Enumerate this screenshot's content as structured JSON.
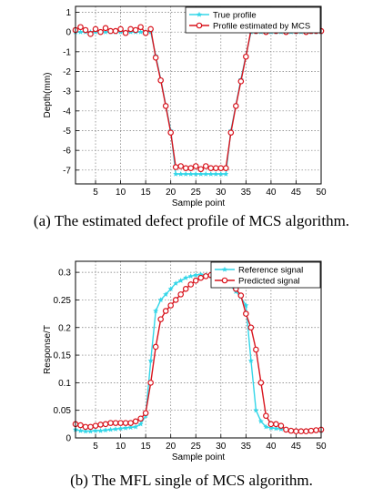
{
  "captions": {
    "a": "(a) The estimated defect profile of MCS algorithm.",
    "b": "(b) The MFL single of MCS algorithm."
  },
  "chart_data": [
    {
      "type": "line",
      "xlabel": "Sample point",
      "ylabel": "Depth(mm)",
      "xlim": [
        1,
        50
      ],
      "ylim": [
        -7.7,
        1.3
      ],
      "xticks": [
        5,
        10,
        15,
        20,
        25,
        30,
        35,
        40,
        45,
        50
      ],
      "yticks": [
        1,
        0,
        -1,
        -2,
        -3,
        -4,
        -5,
        -6,
        -7
      ],
      "grid": true,
      "legend_position": "top-right",
      "x": [
        1,
        2,
        3,
        4,
        5,
        6,
        7,
        8,
        9,
        10,
        11,
        12,
        13,
        14,
        15,
        16,
        17,
        18,
        19,
        20,
        21,
        22,
        23,
        24,
        25,
        26,
        27,
        28,
        29,
        30,
        31,
        32,
        33,
        34,
        35,
        36,
        37,
        38,
        39,
        40,
        41,
        42,
        43,
        44,
        45,
        46,
        47,
        48,
        49,
        50
      ],
      "series": [
        {
          "name": "True profile",
          "color": "#33d6e8",
          "marker": "star",
          "values": [
            0,
            0,
            0,
            0,
            0,
            0,
            0,
            0,
            0,
            0,
            0,
            0,
            0,
            0,
            0,
            0,
            -1.2,
            -2.4,
            -3.7,
            -5.0,
            -7.2,
            -7.2,
            -7.2,
            -7.2,
            -7.2,
            -7.2,
            -7.2,
            -7.2,
            -7.2,
            -7.2,
            -7.2,
            -5.0,
            -3.7,
            -2.4,
            -1.2,
            0,
            0,
            0,
            0,
            0,
            0,
            0,
            0,
            0,
            0,
            0,
            0,
            0,
            0,
            0
          ]
        },
        {
          "name": "Profile estimated by MCS",
          "color": "#d8131c",
          "marker": "circle",
          "values": [
            0.1,
            0.25,
            0.1,
            -0.1,
            0.15,
            0.0,
            0.2,
            0.05,
            0.05,
            0.15,
            -0.05,
            0.15,
            0.1,
            0.25,
            -0.05,
            0.15,
            -1.3,
            -2.45,
            -3.75,
            -5.1,
            -6.85,
            -6.8,
            -6.9,
            -6.9,
            -6.8,
            -6.95,
            -6.8,
            -6.9,
            -6.9,
            -6.9,
            -6.9,
            -5.1,
            -3.75,
            -2.5,
            -1.25,
            0.1,
            0.05,
            0.1,
            0.0,
            0.1,
            0.05,
            0.1,
            0.0,
            0.1,
            0.05,
            0.1,
            0.0,
            0.05,
            0.05,
            0.05
          ]
        }
      ]
    },
    {
      "type": "line",
      "xlabel": "Sample point",
      "ylabel": "Response/T",
      "xlim": [
        1,
        50
      ],
      "ylim": [
        0,
        0.32
      ],
      "xticks": [
        5,
        10,
        15,
        20,
        25,
        30,
        35,
        40,
        45,
        50
      ],
      "yticks": [
        0,
        0.05,
        0.1,
        0.15,
        0.2,
        0.25,
        0.3
      ],
      "grid": true,
      "legend_position": "top-right",
      "x": [
        1,
        2,
        3,
        4,
        5,
        6,
        7,
        8,
        9,
        10,
        11,
        12,
        13,
        14,
        15,
        16,
        17,
        18,
        19,
        20,
        21,
        22,
        23,
        24,
        25,
        26,
        27,
        28,
        29,
        30,
        31,
        32,
        33,
        34,
        35,
        36,
        37,
        38,
        39,
        40,
        41,
        42,
        43,
        44,
        45,
        46,
        47,
        48,
        49,
        50
      ],
      "series": [
        {
          "name": "Reference signal",
          "color": "#33d6e8",
          "marker": "star",
          "values": [
            0.015,
            0.013,
            0.012,
            0.012,
            0.013,
            0.013,
            0.014,
            0.015,
            0.016,
            0.017,
            0.018,
            0.019,
            0.02,
            0.025,
            0.04,
            0.14,
            0.23,
            0.25,
            0.26,
            0.27,
            0.28,
            0.285,
            0.29,
            0.293,
            0.295,
            0.296,
            0.295,
            0.293,
            0.29,
            0.285,
            0.28,
            0.275,
            0.265,
            0.255,
            0.24,
            0.14,
            0.05,
            0.03,
            0.02,
            0.018,
            0.017,
            0.016,
            0.015,
            0.014,
            0.013,
            0.013,
            0.013,
            0.013,
            0.013,
            0.013
          ]
        },
        {
          "name": "Predicted signal",
          "color": "#d8131c",
          "marker": "circle",
          "values": [
            0.025,
            0.023,
            0.02,
            0.02,
            0.022,
            0.024,
            0.025,
            0.027,
            0.027,
            0.027,
            0.027,
            0.027,
            0.03,
            0.035,
            0.045,
            0.1,
            0.165,
            0.215,
            0.23,
            0.24,
            0.25,
            0.26,
            0.27,
            0.278,
            0.285,
            0.29,
            0.293,
            0.295,
            0.294,
            0.293,
            0.285,
            0.28,
            0.27,
            0.258,
            0.225,
            0.2,
            0.16,
            0.1,
            0.04,
            0.025,
            0.025,
            0.022,
            0.015,
            0.013,
            0.012,
            0.012,
            0.012,
            0.013,
            0.014,
            0.015
          ]
        }
      ]
    }
  ]
}
